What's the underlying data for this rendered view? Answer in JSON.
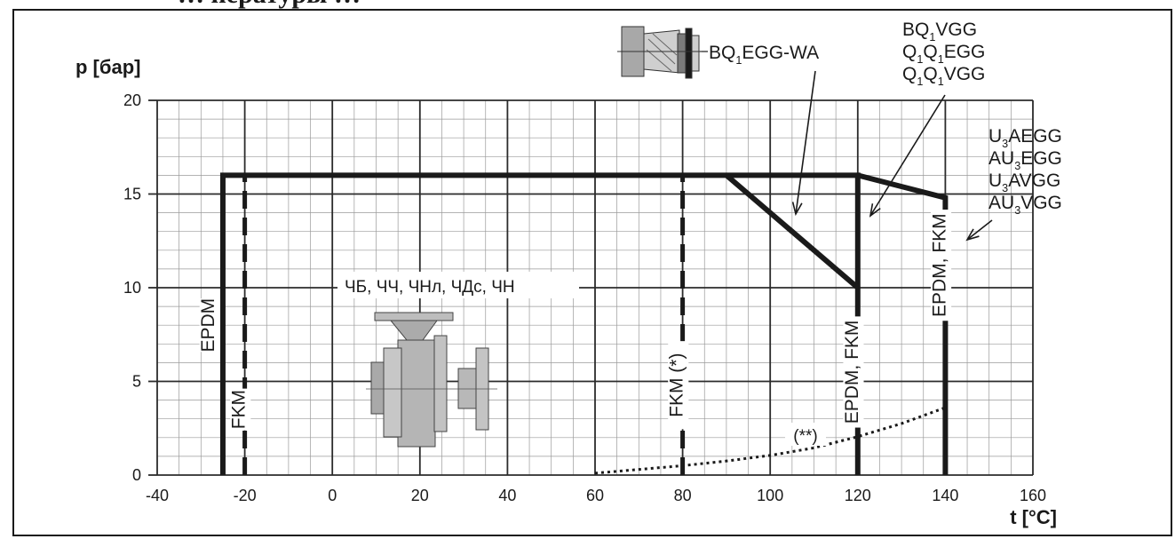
{
  "page": {
    "title": "… пературы …",
    "border_color": "#1a1a1a"
  },
  "chart_data": {
    "type": "line",
    "ylabel": "p [бар]",
    "xlabel": "t [°C]",
    "xlim": [
      -40,
      160
    ],
    "ylim": [
      0,
      20
    ],
    "x_ticks": [
      -40,
      -20,
      0,
      20,
      40,
      60,
      80,
      100,
      120,
      140,
      160
    ],
    "y_ticks": [
      0,
      5,
      10,
      15,
      20
    ],
    "grid": true,
    "series": [
      {
        "id": "frame-16bar",
        "style": "solid-thick",
        "points": [
          [
            -25,
            0
          ],
          [
            -25,
            16
          ],
          [
            120,
            16
          ],
          [
            120,
            0
          ]
        ]
      },
      {
        "id": "bq1egg-wa",
        "style": "solid-thick",
        "points": [
          [
            90,
            16
          ],
          [
            120,
            10
          ]
        ]
      },
      {
        "id": "u3-line",
        "style": "solid-thick",
        "points": [
          [
            120,
            16
          ],
          [
            140,
            14.8
          ],
          [
            140,
            0
          ]
        ]
      },
      {
        "id": "fkm-20",
        "style": "dashed-thick",
        "points": [
          [
            -20,
            0
          ],
          [
            -20,
            16
          ]
        ]
      },
      {
        "id": "fkm-80",
        "style": "dashed-thick",
        "points": [
          [
            80,
            0
          ],
          [
            80,
            16
          ]
        ]
      },
      {
        "id": "vapor",
        "style": "dotted",
        "points": [
          [
            60,
            0.1
          ],
          [
            70,
            0.3
          ],
          [
            80,
            0.5
          ],
          [
            90,
            0.75
          ],
          [
            100,
            1.05
          ],
          [
            110,
            1.45
          ],
          [
            120,
            2.05
          ],
          [
            130,
            2.75
          ],
          [
            140,
            3.6
          ]
        ]
      }
    ],
    "vertical_labels": [
      {
        "text": "EPDM",
        "x": -27,
        "y": 8
      },
      {
        "text": "FKM",
        "x": -20,
        "y": 3.5
      },
      {
        "text": "FKM (*)",
        "x": 80,
        "y": 4.8
      },
      {
        "text": "EPDM, FKM",
        "x": 120,
        "y": 5.5
      },
      {
        "text": "EPDM, FKM",
        "x": 140,
        "y": 11.2
      }
    ],
    "annotations": [
      {
        "text": "ЧБ, ЧЧ, ЧНл, ЧДс, ЧН",
        "x": 20,
        "y": 10.3
      },
      {
        "text": "(**)",
        "x": 108,
        "y": 2.2
      },
      {
        "text": "BQ1EGG-WA",
        "lines": [
          [
            "BQ",
            "1",
            "EGG-WA"
          ]
        ]
      },
      {
        "text": "BQ1VGG / Q1Q1EGG / Q1Q1VGG",
        "lines": [
          [
            "BQ",
            "1",
            "VGG"
          ],
          [
            "Q",
            "1",
            "Q",
            "1",
            "EGG"
          ],
          [
            "Q",
            "1",
            "Q",
            "1",
            "VGG"
          ]
        ]
      },
      {
        "text": "U3AEGG / AU3EGG / U3AVGG / AU3VGG",
        "lines": [
          [
            "U",
            "3",
            "AEGG"
          ],
          [
            "AU",
            "3",
            "EGG"
          ],
          [
            "U",
            "3",
            "AVGG"
          ],
          [
            "AU",
            "3",
            "VGG"
          ]
        ]
      }
    ]
  }
}
